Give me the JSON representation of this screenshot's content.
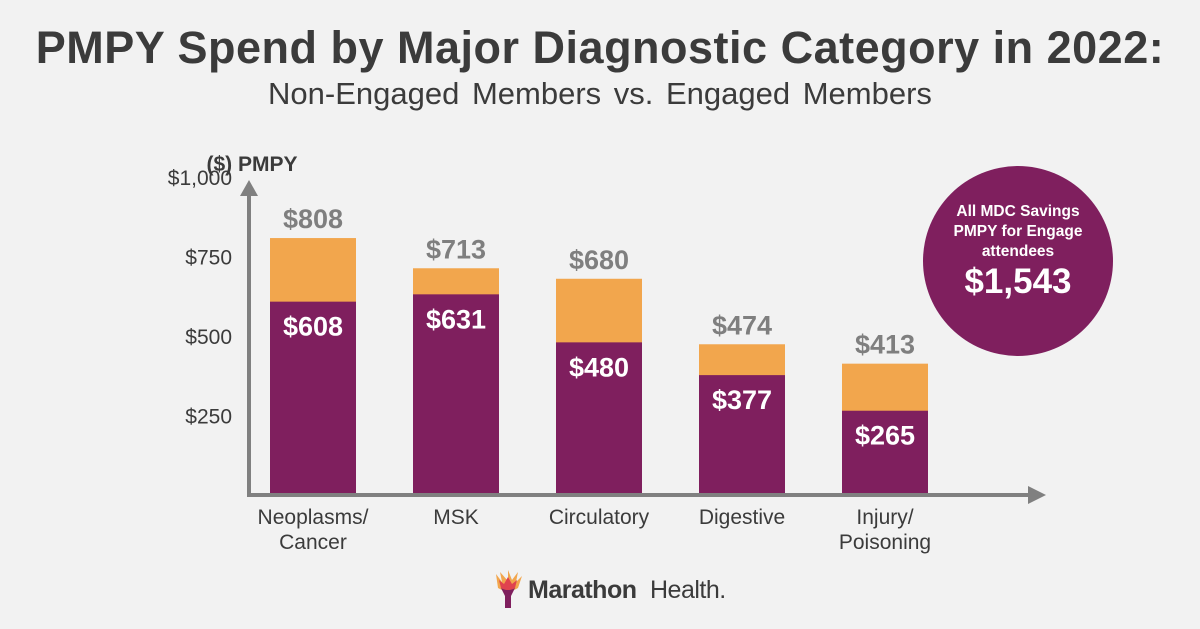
{
  "header": {
    "title": "PMPY Spend by Major Diagnostic Category in 2022:",
    "subtitle": "Non-Engaged Members vs. Engaged Members"
  },
  "chart_data": {
    "type": "bar",
    "stacked": "overlay",
    "ylabel": "($) PMPY",
    "ylim": [
      0,
      1000
    ],
    "yticks": [
      250,
      500,
      750,
      1000
    ],
    "ytick_labels": [
      "$250",
      "$500",
      "$750",
      "$1,000"
    ],
    "categories": [
      "Neoplasms/\nCancer",
      "MSK",
      "Circulatory",
      "Digestive",
      "Injury/\nPoisoning"
    ],
    "series": [
      {
        "name": "Non-Engaged Members",
        "color": "#f2a64d",
        "values": [
          808,
          713,
          680,
          474,
          413
        ],
        "labels": [
          "$808",
          "$713",
          "$680",
          "$474",
          "$413"
        ]
      },
      {
        "name": "Engaged Members",
        "color": "#7f1f5e",
        "values": [
          608,
          631,
          480,
          377,
          265
        ],
        "labels": [
          "$608",
          "$631",
          "$480",
          "$377",
          "$265"
        ]
      }
    ]
  },
  "callout": {
    "text": "All MDC Savings PMPY for Engage attendees",
    "value": "$1,543"
  },
  "logo": {
    "brand_bold": "Marathon",
    "brand_light": "Health.",
    "icon": "flame-icon"
  },
  "colors": {
    "background": "#f2f2f2",
    "text": "#3b3b3b",
    "axis": "#808080",
    "label_gray": "#7f7f7f",
    "purple": "#7f1f5e",
    "orange": "#f2a64d"
  }
}
